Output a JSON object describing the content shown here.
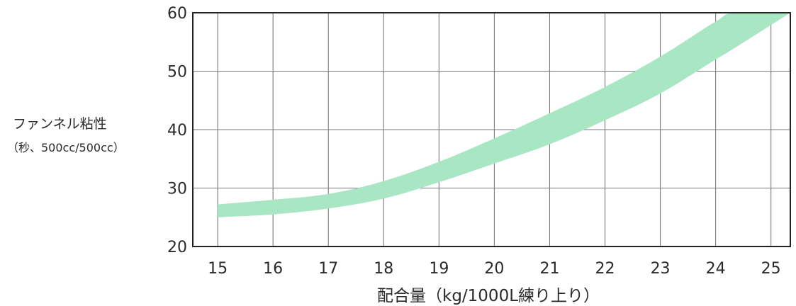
{
  "chart_data": {
    "type": "area",
    "ylabel_line1": "ファンネル粘性",
    "ylabel_line2": "（秒、500cc/500cc）",
    "xlabel": "配合量（kg/1000L練り上り）",
    "x_ticks": [
      15,
      16,
      17,
      18,
      19,
      20,
      21,
      22,
      23,
      24,
      25
    ],
    "y_ticks": [
      20,
      30,
      40,
      50,
      60
    ],
    "xlim": [
      14.55,
      25.35
    ],
    "ylim": [
      20,
      60
    ],
    "grid": true,
    "series": [
      {
        "band_color": "#a8e6c4",
        "x": [
          15.0,
          16.0,
          17.0,
          18.0,
          19.0,
          20.0,
          21.0,
          22.0,
          23.0,
          24.0,
          24.35,
          25.35
        ],
        "upper": [
          27.2,
          28.0,
          29.0,
          31.2,
          34.5,
          38.5,
          42.8,
          47.3,
          52.5,
          58.5,
          60.0,
          60.0
        ],
        "lower": [
          25.0,
          25.5,
          26.5,
          28.2,
          31.0,
          34.2,
          37.5,
          41.6,
          46.2,
          52.0,
          54.0,
          60.0
        ]
      }
    ]
  }
}
